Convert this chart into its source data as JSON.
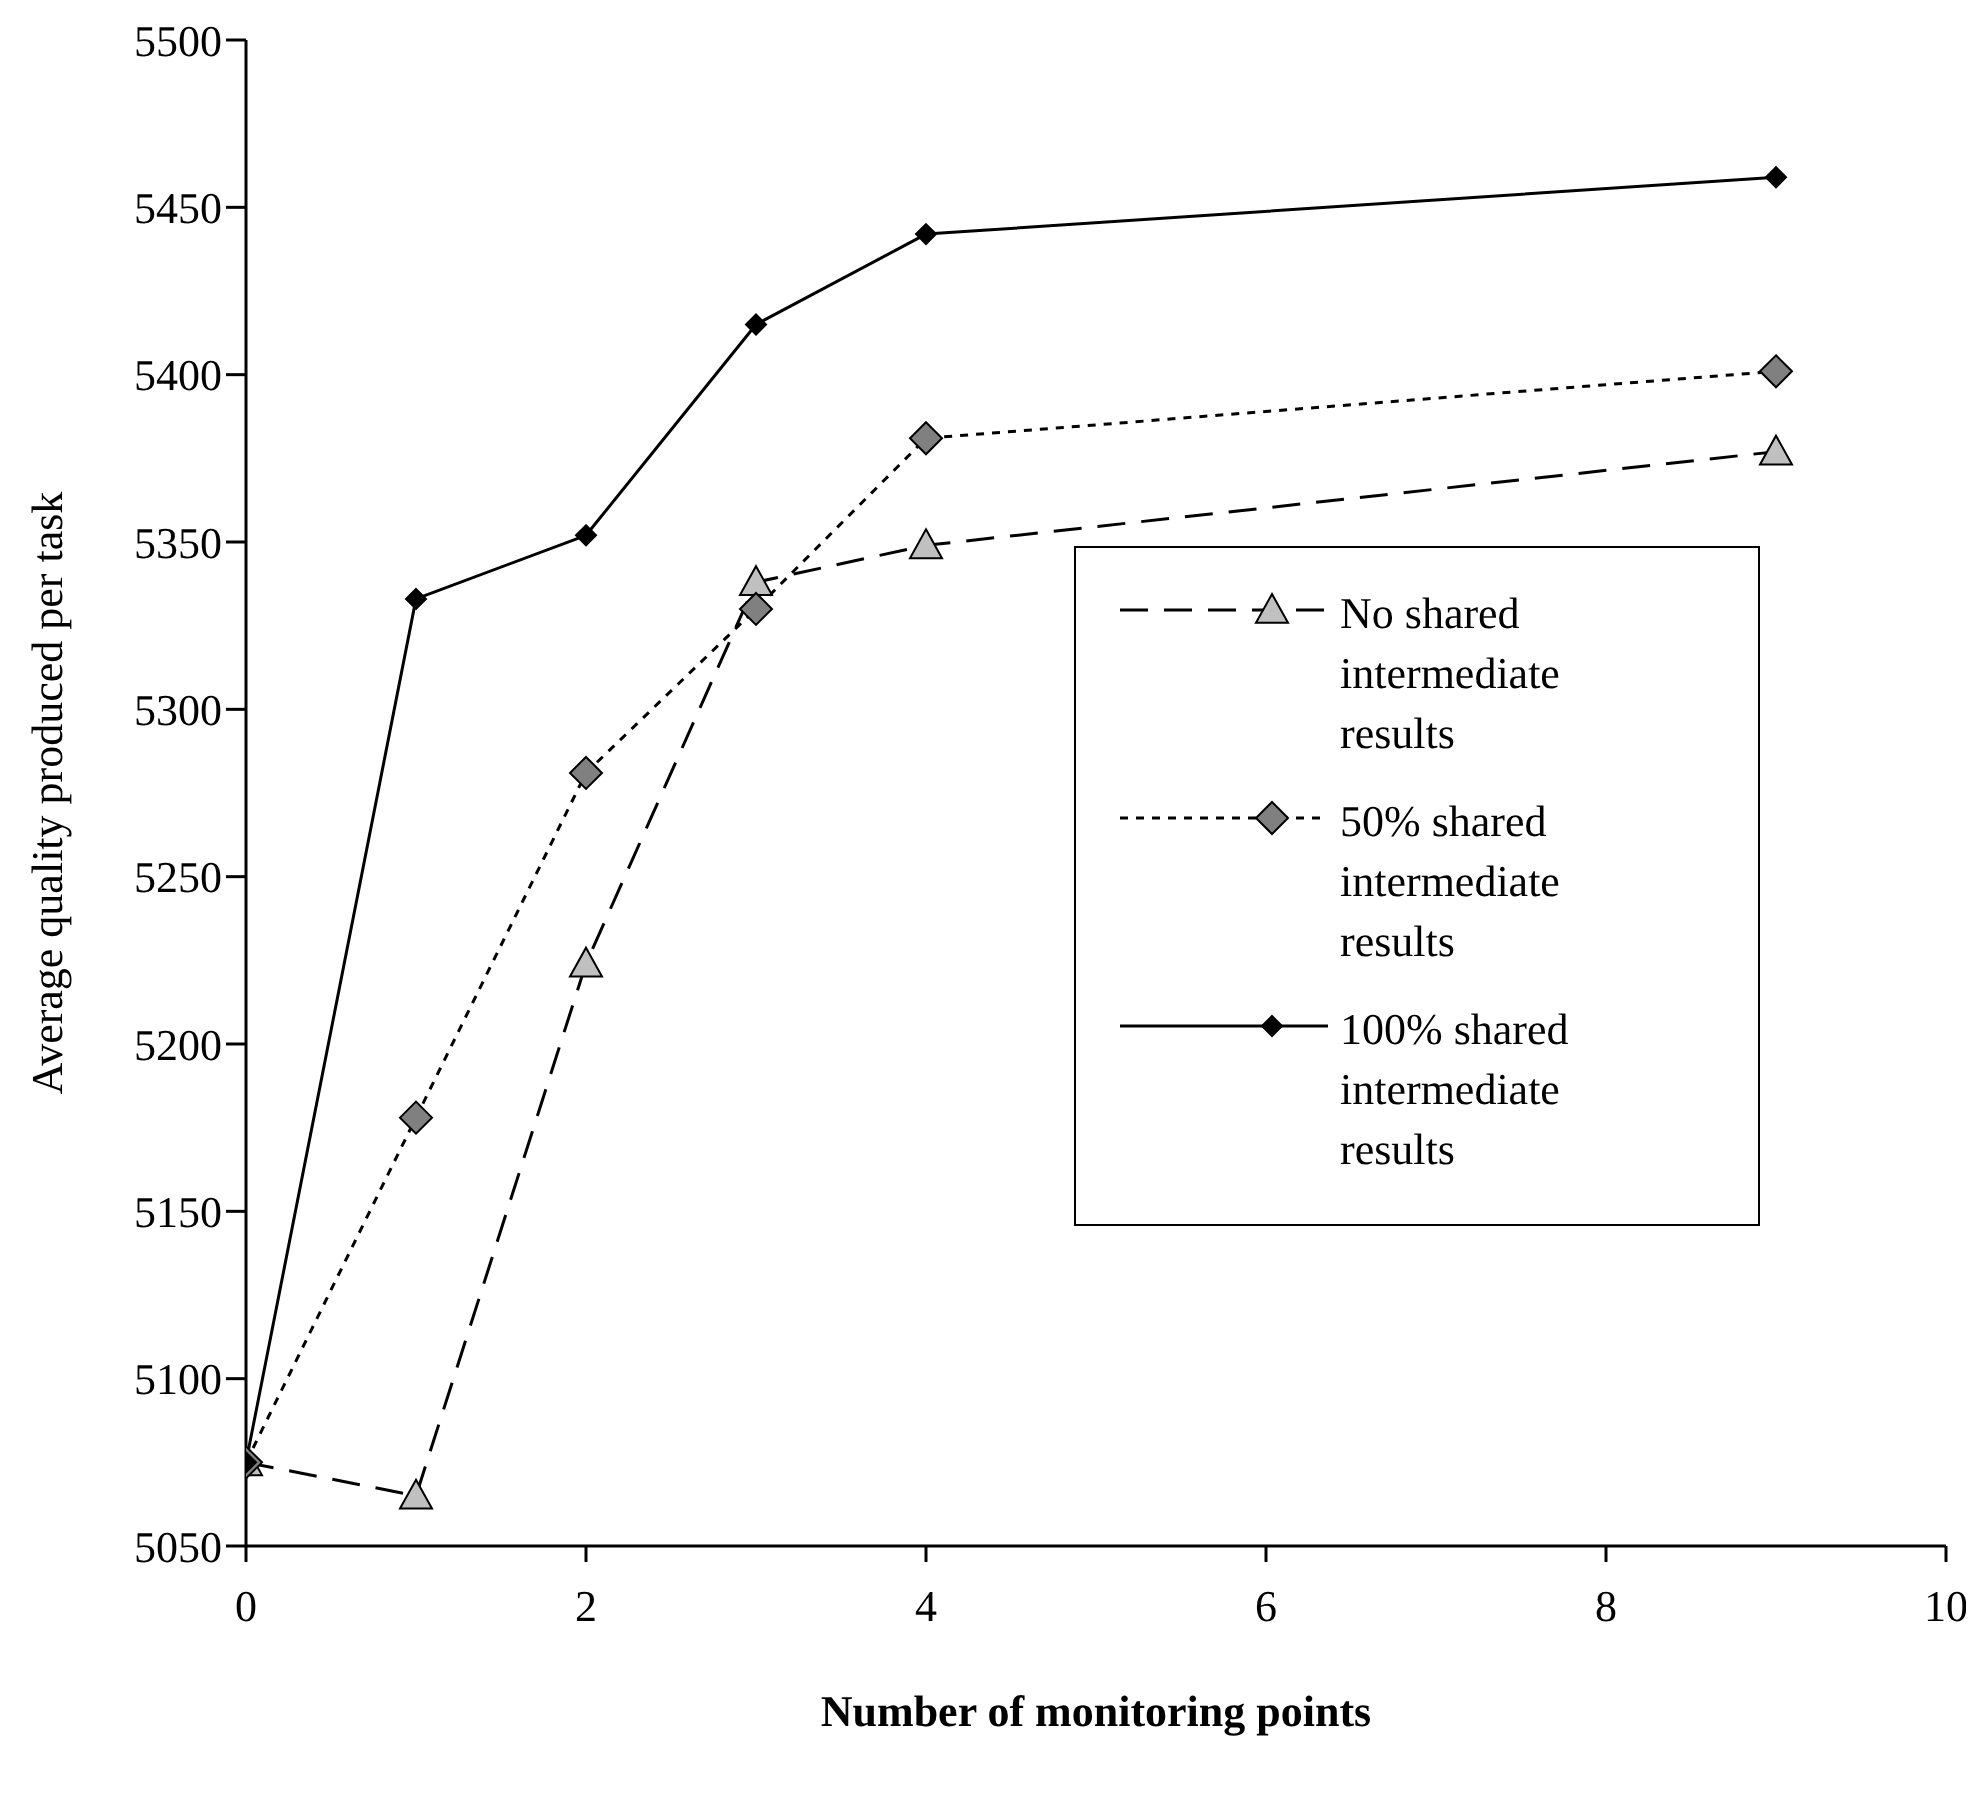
{
  "chart_data": {
    "type": "line",
    "xlabel": "Number of monitoring points",
    "ylabel": "Average quality produced per task",
    "x": [
      0,
      1,
      2,
      3,
      4,
      9
    ],
    "series": [
      {
        "name": "No shared intermediate results",
        "color": "#c0c0c0",
        "marker": "triangle",
        "line_style": "dashed",
        "values": [
          5075,
          5065,
          5224,
          5338,
          5349,
          5377
        ]
      },
      {
        "name": "50% shared intermediate results",
        "color": "#808080",
        "marker": "diamond",
        "line_style": "dotted",
        "values": [
          5075,
          5178,
          5281,
          5330,
          5381,
          5401
        ]
      },
      {
        "name": "100% shared intermediate results",
        "color": "#000000",
        "marker": "diamond",
        "line_style": "solid",
        "values": [
          5075,
          5333,
          5352,
          5415,
          5442,
          5459
        ]
      }
    ],
    "xlim": [
      0,
      10
    ],
    "xticks": [
      0,
      2,
      4,
      6,
      8,
      10
    ],
    "ylim": [
      5050,
      5500
    ],
    "yticks": [
      5050,
      5100,
      5150,
      5200,
      5250,
      5300,
      5350,
      5400,
      5450,
      5500
    ],
    "grid": false,
    "legend": "right"
  }
}
